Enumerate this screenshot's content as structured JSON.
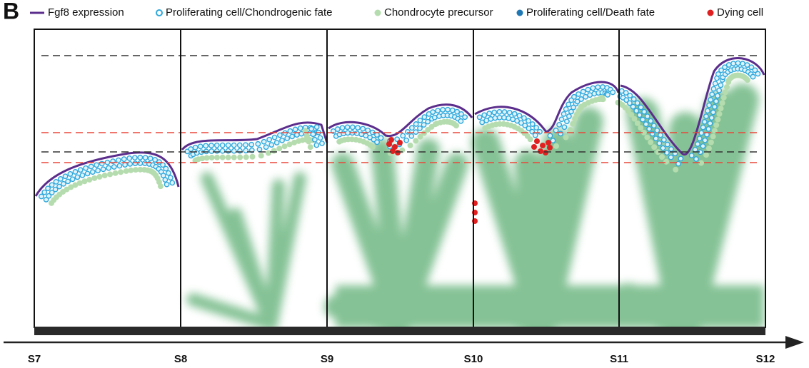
{
  "panel_label": "B",
  "legend": [
    "Fgf8 expression",
    "Proliferating cell/Chondrogenic fate",
    "Chondrocyte precursor",
    "Proliferating cell/Death fate",
    "Dying cell"
  ],
  "stages": [
    "S7",
    "S8",
    "S9",
    "S10",
    "S11",
    "S12"
  ]
}
